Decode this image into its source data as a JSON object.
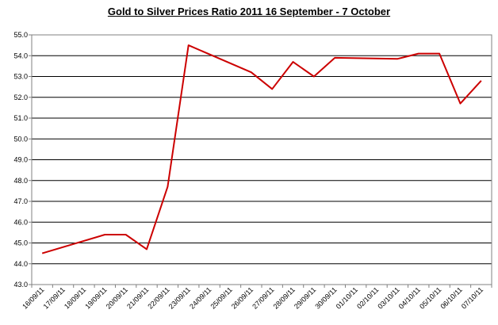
{
  "chart_data": {
    "type": "line",
    "title": "Gold to Silver Prices Ratio 2011 16 September - 7 October",
    "xlabel": "",
    "ylabel": "",
    "x": [
      "16/09/11",
      "17/09/11",
      "18/09/11",
      "19/09/11",
      "20/09/11",
      "21/09/11",
      "22/09/11",
      "23/09/11",
      "24/09/11",
      "25/09/11",
      "26/09/11",
      "27/09/11",
      "28/09/11",
      "29/09/11",
      "30/09/11",
      "01/10/11",
      "02/10/11",
      "03/10/11",
      "04/10/11",
      "05/10/11",
      "06/10/11",
      "07/10/11"
    ],
    "series": [
      {
        "values": [
          44.5,
          null,
          null,
          45.4,
          45.4,
          44.7,
          47.7,
          54.5,
          null,
          null,
          53.2,
          52.4,
          53.7,
          53.0,
          53.9,
          null,
          null,
          53.85,
          54.1,
          54.1,
          51.7,
          52.8
        ],
        "color": "#cc0000"
      }
    ],
    "ylim": [
      43.0,
      55.0
    ],
    "y_ticks": [
      "43.0",
      "44.0",
      "45.0",
      "46.0",
      "47.0",
      "48.0",
      "49.0",
      "50.0",
      "51.0",
      "52.0",
      "53.0",
      "54.0",
      "55.0"
    ],
    "grid": true,
    "legend": "none",
    "colors": {
      "line": "#cc0000",
      "grid": "#000000",
      "axis": "#808080"
    }
  }
}
